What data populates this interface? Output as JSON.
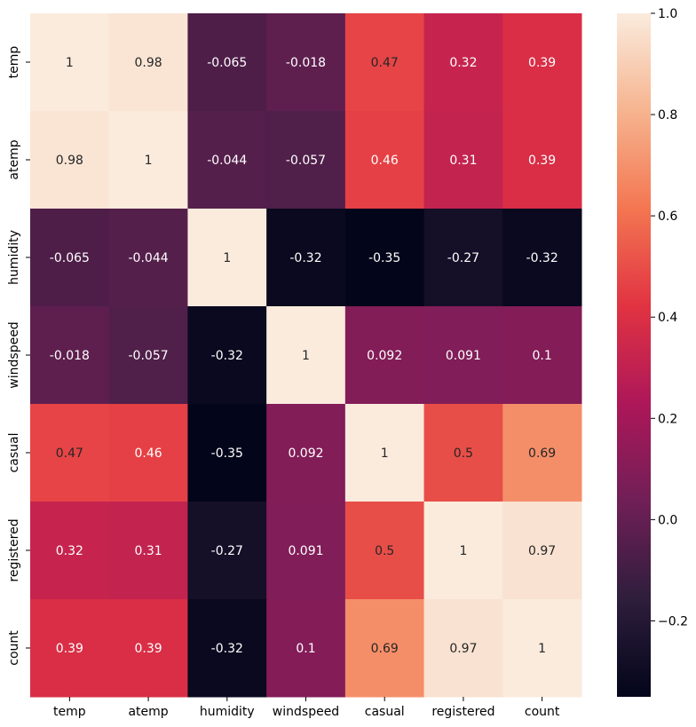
{
  "chart_data": {
    "type": "heatmap",
    "title": "",
    "xlabel": "",
    "ylabel": "",
    "x_categories": [
      "temp",
      "atemp",
      "humidity",
      "windspeed",
      "casual",
      "registered",
      "count"
    ],
    "y_categories": [
      "temp",
      "atemp",
      "humidity",
      "windspeed",
      "casual",
      "registered",
      "count"
    ],
    "values": [
      [
        1,
        0.98,
        -0.065,
        -0.018,
        0.47,
        0.32,
        0.39
      ],
      [
        0.98,
        1,
        -0.044,
        -0.057,
        0.46,
        0.31,
        0.39
      ],
      [
        -0.065,
        -0.044,
        1,
        -0.32,
        -0.35,
        -0.27,
        -0.32
      ],
      [
        -0.018,
        -0.057,
        -0.32,
        1,
        0.092,
        0.091,
        0.1
      ],
      [
        0.47,
        0.46,
        -0.35,
        0.092,
        1,
        0.5,
        0.69
      ],
      [
        0.32,
        0.31,
        -0.27,
        0.091,
        0.5,
        1,
        0.97
      ],
      [
        0.39,
        0.39,
        -0.32,
        0.1,
        0.69,
        0.97,
        1
      ]
    ],
    "annotations": [
      [
        "1",
        "0.98",
        "-0.065",
        "-0.018",
        "0.47",
        "0.32",
        "0.39"
      ],
      [
        "0.98",
        "1",
        "-0.044",
        "-0.057",
        "0.46",
        "0.31",
        "0.39"
      ],
      [
        "-0.065",
        "-0.044",
        "1",
        "-0.32",
        "-0.35",
        "-0.27",
        "-0.32"
      ],
      [
        "-0.018",
        "-0.057",
        "-0.32",
        "1",
        "0.092",
        "0.091",
        "0.1"
      ],
      [
        "0.47",
        "0.46",
        "-0.35",
        "0.092",
        "1",
        "0.5",
        "0.69"
      ],
      [
        "0.32",
        "0.31",
        "-0.27",
        "0.091",
        "0.5",
        "1",
        "0.97"
      ],
      [
        "0.39",
        "0.39",
        "-0.32",
        "0.1",
        "0.69",
        "0.97",
        "1"
      ]
    ],
    "colorbar": {
      "vmin": -0.35,
      "vmax": 1,
      "ticks": [
        1.0,
        0.8,
        0.6,
        0.4,
        0.2,
        0.0,
        -0.2
      ],
      "tick_labels": [
        "1.0",
        "0.8",
        "0.6",
        "0.4",
        "0.2",
        "0.0",
        "−0.2"
      ],
      "colormap": "rocket",
      "colormap_stops": [
        "#03051a",
        "#2e1e3c",
        "#701f57",
        "#ad1759",
        "#e13342",
        "#f37651",
        "#f6b48f",
        "#faebdd"
      ]
    },
    "grid": false,
    "legend": "colorbar-right"
  }
}
